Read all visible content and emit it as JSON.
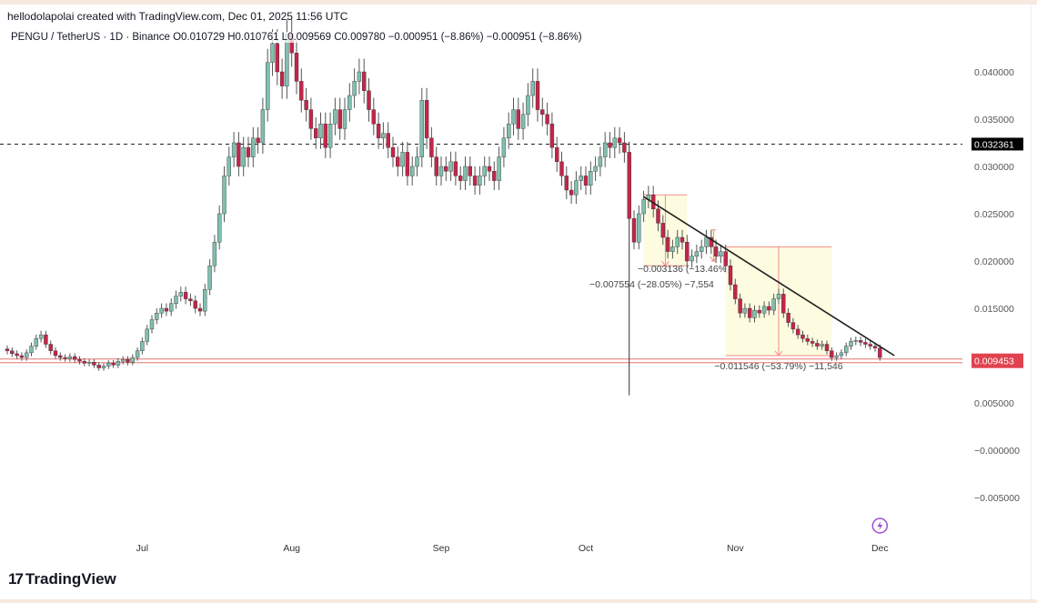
{
  "header": {
    "attribution": "hellodolapolai created with TradingView.com, Dec 01, 2025 11:56 UTC",
    "legend": "PENGU / TetherUS · 1D · Binance  O0.010729  H0.010761  L0.009569  C0.009780  −0.000951 (−8.86%)  −0.000951 (−8.86%)"
  },
  "logo": {
    "text": "TradingView",
    "mark": "17"
  },
  "colors": {
    "up": "#7fbfb0",
    "down": "#c2264a",
    "measure_fill": "#fdfbe0",
    "measure_line": "#f28b8b",
    "price_line": "#e57373",
    "price_badge": "#e0424f",
    "level_badge": "#000000",
    "trendline": "#1e1e1e",
    "axis_text": "#555555",
    "icon": "#9c4fd6"
  },
  "chart_data": {
    "type": "candlestick",
    "symbol": "PENGU / TetherUS",
    "interval": "1D",
    "exchange": "Binance",
    "start_date": "2025-06-03",
    "closes": [
      0.0105,
      0.0102,
      0.01,
      0.0098,
      0.0103,
      0.011,
      0.0118,
      0.0122,
      0.0112,
      0.0105,
      0.01,
      0.0098,
      0.0097,
      0.0099,
      0.0096,
      0.0094,
      0.0092,
      0.0093,
      0.009,
      0.0087,
      0.0089,
      0.0092,
      0.009,
      0.0094,
      0.0096,
      0.0093,
      0.0098,
      0.0105,
      0.0115,
      0.0128,
      0.0138,
      0.0145,
      0.015,
      0.0147,
      0.0155,
      0.0163,
      0.0167,
      0.016,
      0.0158,
      0.015,
      0.0147,
      0.017,
      0.0195,
      0.022,
      0.025,
      0.029,
      0.031,
      0.0325,
      0.03,
      0.032,
      0.031,
      0.033,
      0.0325,
      0.036,
      0.041,
      0.043,
      0.04,
      0.0385,
      0.044,
      0.042,
      0.039,
      0.037,
      0.036,
      0.034,
      0.033,
      0.0345,
      0.032,
      0.0345,
      0.036,
      0.034,
      0.036,
      0.0375,
      0.039,
      0.04,
      0.038,
      0.036,
      0.0345,
      0.033,
      0.0335,
      0.032,
      0.031,
      0.03,
      0.0315,
      0.029,
      0.03,
      0.031,
      0.037,
      0.033,
      0.031,
      0.029,
      0.03,
      0.0295,
      0.0305,
      0.029,
      0.0285,
      0.03,
      0.029,
      0.028,
      0.029,
      0.03,
      0.0295,
      0.0285,
      0.031,
      0.033,
      0.0345,
      0.036,
      0.034,
      0.0355,
      0.0375,
      0.039,
      0.036,
      0.0355,
      0.0345,
      0.032,
      0.0305,
      0.029,
      0.0275,
      0.027,
      0.0285,
      0.029,
      0.028,
      0.0295,
      0.03,
      0.031,
      0.0325,
      0.032,
      0.033,
      0.0325,
      0.0315,
      0.0245,
      0.022,
      0.025,
      0.0265,
      0.027,
      0.0255,
      0.024,
      0.0225,
      0.021,
      0.0215,
      0.0225,
      0.022,
      0.02,
      0.0205,
      0.021,
      0.0215,
      0.0225,
      0.0215,
      0.0205,
      0.021,
      0.0195,
      0.0175,
      0.016,
      0.0145,
      0.015,
      0.014,
      0.0148,
      0.0145,
      0.0152,
      0.0148,
      0.016,
      0.0165,
      0.0145,
      0.0135,
      0.0128,
      0.0122,
      0.0118,
      0.0115,
      0.0113,
      0.011,
      0.0112,
      0.0105,
      0.0098,
      0.01,
      0.0103,
      0.011,
      0.0115,
      0.0116,
      0.0114,
      0.0112,
      0.011,
      0.0108,
      0.0098
    ],
    "wick_overrides": [
      {
        "date": "2025-10-10",
        "low": 0.0058
      }
    ],
    "x_ticks": [
      {
        "label": "Jul",
        "date": "2025-07-01"
      },
      {
        "label": "Aug",
        "date": "2025-08-01"
      },
      {
        "label": "Sep",
        "date": "2025-09-01"
      },
      {
        "label": "Oct",
        "date": "2025-10-01"
      },
      {
        "label": "Nov",
        "date": "2025-11-01"
      },
      {
        "label": "Dec",
        "date": "2025-12-01"
      }
    ],
    "y_ticks": [
      "0.040000",
      "0.035000",
      "0.030000",
      "0.025000",
      "0.020000",
      "0.015000",
      "0.010000",
      "0.005000",
      "−0.000000",
      "−0.005000"
    ],
    "y_tick_values": [
      0.04,
      0.035,
      0.03,
      0.025,
      0.02,
      0.015,
      0.01,
      0.005,
      0,
      -0.005
    ],
    "ylim": [
      -0.0075,
      0.0455
    ],
    "price_scale": "right",
    "levels": [
      {
        "price": 0.032361,
        "label": "0.032361",
        "style": "dashed"
      },
      {
        "price": 0.009453,
        "label": "0.009453",
        "style": "double-red"
      }
    ],
    "trendline": {
      "from": {
        "date": "2025-10-13",
        "price": 0.0268
      },
      "to": {
        "date": "2025-12-04",
        "price": 0.01
      }
    },
    "measurements": [
      {
        "from_date": "2025-10-13",
        "to_date": "2025-10-22",
        "top": 0.027,
        "bottom": 0.0195,
        "label": "−0.007554 (−28.05%) −7,554"
      },
      {
        "from_date": "2025-10-27",
        "to_date": "2025-10-28",
        "top": 0.0233,
        "bottom": 0.02,
        "label": "−0.003136 (−13.46%) −3,136"
      },
      {
        "from_date": "2025-10-30",
        "to_date": "2025-11-21",
        "top": 0.0215,
        "bottom": 0.01,
        "label": "−0.011546 (−53.79%) −11,546"
      }
    ],
    "icons": [
      {
        "name": "lightning-icon",
        "date": "2025-12-01"
      }
    ]
  }
}
